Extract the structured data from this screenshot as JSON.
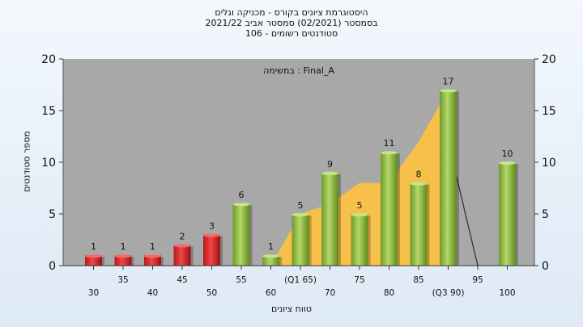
{
  "chart_data": {
    "type": "bar",
    "title_lines": [
      "היסטוגרמת ציונים בקורס - מכניקה וגלים",
      "בסמסטר  (02/2021)  סמסטר אביב 2021/22",
      "סטודנטים רשומים - 106"
    ],
    "annotation": "במשימה : Final_A",
    "xlabel": "טווח ציונים",
    "ylabel": "מספר סטודנטים",
    "ylim": [
      0,
      20
    ],
    "yticks": [
      0,
      5,
      10,
      15,
      20
    ],
    "grid": false,
    "categories_row1": [
      "35",
      "45",
      "55",
      "(Q1 65)",
      "75",
      "85",
      "95"
    ],
    "categories_row2": [
      "30",
      "40",
      "50",
      "60",
      "70",
      "80",
      "(Q3 90)",
      "100"
    ],
    "bars": [
      {
        "x": 30,
        "value": 1,
        "color": "#e23030"
      },
      {
        "x": 35,
        "value": 1,
        "color": "#e23030"
      },
      {
        "x": 40,
        "value": 1,
        "color": "#e23030"
      },
      {
        "x": 45,
        "value": 2,
        "color": "#e23030"
      },
      {
        "x": 50,
        "value": 3,
        "color": "#e23030"
      },
      {
        "x": 55,
        "value": 6,
        "color": "#8fba3e"
      },
      {
        "x": 60,
        "value": 1,
        "color": "#8fba3e"
      },
      {
        "x": 65,
        "value": 5,
        "color": "#8fba3e"
      },
      {
        "x": 70,
        "value": 9,
        "color": "#8fba3e"
      },
      {
        "x": 75,
        "value": 5,
        "color": "#8fba3e"
      },
      {
        "x": 80,
        "value": 11,
        "color": "#8fba3e"
      },
      {
        "x": 85,
        "value": 8,
        "color": "#8fba3e"
      },
      {
        "x": 90,
        "value": 17,
        "color": "#8fba3e"
      },
      {
        "x": 95,
        "value": 0,
        "color": "#8fba3e"
      },
      {
        "x": 100,
        "value": 10,
        "color": "#8fba3e"
      }
    ],
    "area_series": {
      "color": "#f7c04a",
      "points": [
        [
          60,
          0
        ],
        [
          65,
          5
        ],
        [
          70,
          6
        ],
        [
          75,
          8
        ],
        [
          80,
          8
        ],
        [
          85,
          12
        ],
        [
          90,
          17
        ],
        [
          90,
          0
        ]
      ]
    },
    "gray_area": {
      "color": "#b9b9b9",
      "points": [
        [
          60,
          0
        ],
        [
          65,
          4
        ],
        [
          65,
          0
        ]
      ]
    },
    "line_series": {
      "color": "#333333",
      "points": [
        [
          90,
          12
        ],
        [
          95,
          0
        ]
      ]
    },
    "colors": {
      "plot_background": "#a8a8a8",
      "red_bar": "#e23030",
      "green_bar": "#8fba3e",
      "orange_area": "#f7c04a"
    }
  }
}
